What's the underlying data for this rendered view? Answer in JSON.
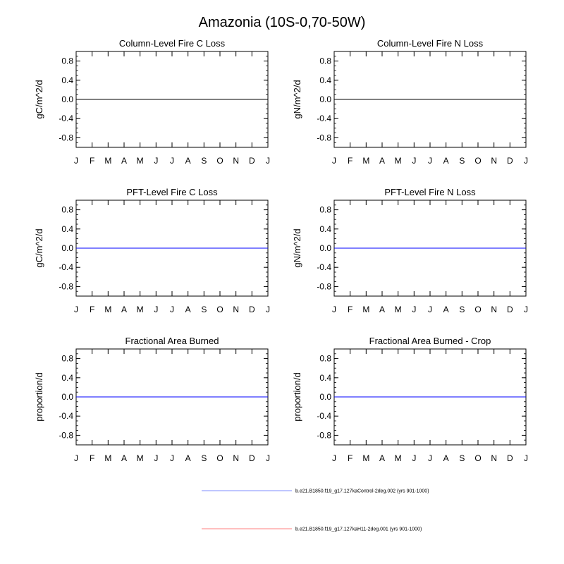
{
  "figure": {
    "title": "Amazonia (10S-0,70-50W)"
  },
  "chart_data": [
    {
      "type": "line",
      "title": "Column-Level Fire C Loss",
      "ylabel": "gC/m^2/d",
      "xlabel": "",
      "categories": [
        "J",
        "F",
        "M",
        "A",
        "M",
        "J",
        "J",
        "A",
        "S",
        "O",
        "N",
        "D",
        "J"
      ],
      "yticks": [
        "0.8",
        "0.4",
        "0.0",
        "-0.4",
        "-0.8"
      ],
      "ylim": [
        -1,
        1
      ],
      "series": [
        {
          "color": "#000000",
          "values": [
            0,
            0,
            0,
            0,
            0,
            0,
            0,
            0,
            0,
            0,
            0,
            0,
            0
          ]
        }
      ]
    },
    {
      "type": "line",
      "title": "Column-Level Fire N Loss",
      "ylabel": "gN/m^2/d",
      "xlabel": "",
      "categories": [
        "J",
        "F",
        "M",
        "A",
        "M",
        "J",
        "J",
        "A",
        "S",
        "O",
        "N",
        "D",
        "J"
      ],
      "yticks": [
        "0.8",
        "0.4",
        "0.0",
        "-0.4",
        "-0.8"
      ],
      "ylim": [
        -1,
        1
      ],
      "series": [
        {
          "color": "#000000",
          "values": [
            0,
            0,
            0,
            0,
            0,
            0,
            0,
            0,
            0,
            0,
            0,
            0,
            0
          ]
        }
      ]
    },
    {
      "type": "line",
      "title": "PFT-Level Fire C Loss",
      "ylabel": "gC/m^2/d",
      "xlabel": "",
      "categories": [
        "J",
        "F",
        "M",
        "A",
        "M",
        "J",
        "J",
        "A",
        "S",
        "O",
        "N",
        "D",
        "J"
      ],
      "yticks": [
        "0.8",
        "0.4",
        "0.0",
        "-0.4",
        "-0.8"
      ],
      "ylim": [
        -1,
        1
      ],
      "series": [
        {
          "color": "#ff0000",
          "values": [
            0,
            0,
            0,
            0,
            0,
            0,
            0,
            0,
            0,
            0,
            0,
            0,
            0
          ]
        },
        {
          "color": "#0000ff",
          "values": [
            0,
            0,
            0,
            0,
            0,
            0,
            0,
            0,
            0,
            0,
            0,
            0,
            0
          ]
        }
      ]
    },
    {
      "type": "line",
      "title": "PFT-Level Fire N Loss",
      "ylabel": "gN/m^2/d",
      "xlabel": "",
      "categories": [
        "J",
        "F",
        "M",
        "A",
        "M",
        "J",
        "J",
        "A",
        "S",
        "O",
        "N",
        "D",
        "J"
      ],
      "yticks": [
        "0.8",
        "0.4",
        "0.0",
        "-0.4",
        "-0.8"
      ],
      "ylim": [
        -1,
        1
      ],
      "series": [
        {
          "color": "#ff0000",
          "values": [
            0,
            0,
            0,
            0,
            0,
            0,
            0,
            0,
            0,
            0,
            0,
            0,
            0
          ]
        },
        {
          "color": "#0000ff",
          "values": [
            0,
            0,
            0,
            0,
            0,
            0,
            0,
            0,
            0,
            0,
            0,
            0,
            0
          ]
        }
      ]
    },
    {
      "type": "line",
      "title": "Fractional Area Burned",
      "ylabel": "proportion/d",
      "xlabel": "",
      "categories": [
        "J",
        "F",
        "M",
        "A",
        "M",
        "J",
        "J",
        "A",
        "S",
        "O",
        "N",
        "D",
        "J"
      ],
      "yticks": [
        "0.8",
        "0.4",
        "0.0",
        "-0.4",
        "-0.8"
      ],
      "ylim": [
        -1,
        1
      ],
      "series": [
        {
          "color": "#ff0000",
          "values": [
            0,
            0,
            0,
            0,
            0,
            0,
            0,
            0,
            0,
            0,
            0,
            0,
            0
          ]
        },
        {
          "color": "#0000ff",
          "values": [
            0,
            0,
            0,
            0,
            0,
            0,
            0,
            0,
            0,
            0,
            0,
            0,
            0
          ]
        }
      ]
    },
    {
      "type": "line",
      "title": "Fractional Area Burned - Crop",
      "ylabel": "proportion/d",
      "xlabel": "",
      "categories": [
        "J",
        "F",
        "M",
        "A",
        "M",
        "J",
        "J",
        "A",
        "S",
        "O",
        "N",
        "D",
        "J"
      ],
      "yticks": [
        "0.8",
        "0.4",
        "0.0",
        "-0.4",
        "-0.8"
      ],
      "ylim": [
        -1,
        1
      ],
      "series": [
        {
          "color": "#ff0000",
          "values": [
            0,
            0,
            0,
            0,
            0,
            0,
            0,
            0,
            0,
            0,
            0,
            0,
            0
          ]
        },
        {
          "color": "#0000ff",
          "values": [
            0,
            0,
            0,
            0,
            0,
            0,
            0,
            0,
            0,
            0,
            0,
            0,
            0
          ]
        }
      ]
    }
  ],
  "legend": {
    "placement": "bottom-center",
    "entries": [
      {
        "label": "b.e21.B1850.f19_g17.127kaControl-2deg.002 (yrs 901-1000)",
        "color": "#aab4ff"
      },
      {
        "label": "b.e21.B1850.f19_g17.127kaH11-2deg.001 (yrs 901-1000)",
        "color": "#ffaaaa"
      }
    ]
  }
}
